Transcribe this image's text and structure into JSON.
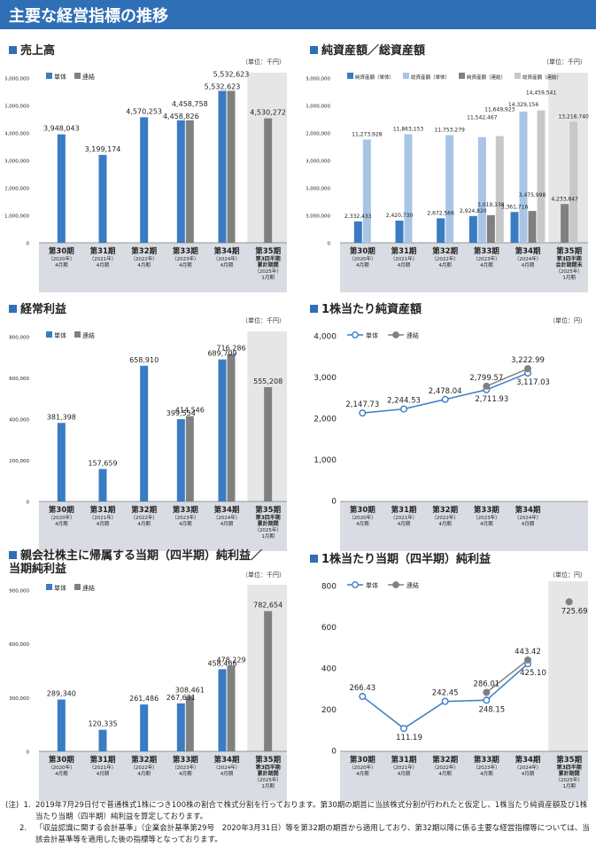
{
  "page_title": "主要な経営指標の推移",
  "notes": {
    "prefix": "(注)",
    "items": [
      {
        "num": "1.",
        "text": "2019年7月29日付で普通株式1株につき100株の割合で株式分割を行っております。第30期の期首に当該株式分割が行われたと仮定し、1株当たり純資産額及び1株当たり当期（四半期）純利益を算定しております。"
      },
      {
        "num": "2.",
        "text": "「収益認識に関する会計基準」（企業会計基準第29号　2020年3月31日）等を第32期の期首から適用しており、第32期以降に係る主要な経営指標等については、当該会計基準等を適用した後の指標等となっております。"
      }
    ]
  },
  "colors": {
    "single": "#3a7cc3",
    "consolidated": "#808080",
    "light_single": "#a8c5e6",
    "light_consolidated": "#c8c8c8",
    "shade": "#e6e6e6"
  },
  "chart_data": [
    {
      "id": "sales",
      "type": "bar",
      "title": "売上高",
      "unit": "（単位：千円）",
      "categories": [
        {
          "label": "第30期",
          "sub": [
            "（2020年）",
            "4月期"
          ]
        },
        {
          "label": "第31期",
          "sub": [
            "（2021年）",
            "4月期"
          ]
        },
        {
          "label": "第32期",
          "sub": [
            "（2022年）",
            "4月期"
          ]
        },
        {
          "label": "第33期",
          "sub": [
            "（2023年）",
            "4月期"
          ]
        },
        {
          "label": "第34期",
          "sub": [
            "（2024年）",
            "4月期"
          ]
        },
        {
          "label": "第35期",
          "sub": [
            "第3四半期",
            "累計期間",
            "（2025年）",
            "1月期"
          ]
        }
      ],
      "series": [
        {
          "name": "単体",
          "color": "#3a7cc3",
          "values": [
            3948043,
            3199174,
            4570253,
            4458826,
            5532623,
            null
          ]
        },
        {
          "name": "連結",
          "color": "#808080",
          "values": [
            null,
            null,
            null,
            4458758,
            5532623,
            4530272
          ]
        }
      ],
      "labels": [
        {
          "text": "3,948,043",
          "cat": 0,
          "s": 0
        },
        {
          "text": "3,199,174",
          "cat": 1,
          "s": 0
        },
        {
          "text": "4,570,253",
          "cat": 2,
          "s": 0
        },
        {
          "text": "4,458,826",
          "cat": 3,
          "s": 0,
          "dy": 2
        },
        {
          "text": "4,458,758",
          "cat": 3,
          "s": 1,
          "dy": -12
        },
        {
          "text": "5,532,623",
          "cat": 4,
          "s": 0,
          "dy": 2
        },
        {
          "text": "5,532,623",
          "cat": 4,
          "s": 1,
          "dy": -12
        },
        {
          "text": "4,530,272",
          "cat": 5,
          "s": 1
        }
      ],
      "ylim": [
        0,
        6000000
      ],
      "yticks": [
        "0",
        "1,000,000",
        "2,000,000",
        "3,000,000",
        "4,000,000",
        "5,000,000",
        "6,000,000"
      ],
      "ytick_values": [
        0,
        1000000,
        2000000,
        3000000,
        4000000,
        5000000,
        6000000
      ],
      "shaded_last": true
    },
    {
      "id": "net_assets",
      "type": "bar",
      "title": "純資産額／総資産額",
      "unit": "（単位：千円）",
      "categories": [
        {
          "label": "第30期",
          "sub": [
            "（2020年）",
            "4月期"
          ]
        },
        {
          "label": "第31期",
          "sub": [
            "（2021年）",
            "4月期"
          ]
        },
        {
          "label": "第32期",
          "sub": [
            "（2022年）",
            "4月期"
          ]
        },
        {
          "label": "第33期",
          "sub": [
            "（2023年）",
            "4月期"
          ]
        },
        {
          "label": "第34期",
          "sub": [
            "（2024年）",
            "4月期"
          ]
        },
        {
          "label": "第35期",
          "sub": [
            "第3四半期",
            "会計期間末",
            "（2025年）",
            "1月期"
          ]
        }
      ],
      "series": [
        {
          "name": "純資産額（単体）",
          "color": "#3a7cc3",
          "values": [
            2332433,
            2420730,
            2672566,
            2924820,
            3361716,
            null
          ]
        },
        {
          "name": "総資産額（単体）",
          "color": "#a8c5e6",
          "values": [
            11273928,
            11863153,
            11753279,
            11542467,
            14329156,
            null
          ]
        },
        {
          "name": "純資産額（連結）",
          "color": "#808080",
          "values": [
            null,
            null,
            null,
            3019338,
            3475998,
            4233847
          ]
        },
        {
          "name": "総資産額（連結）",
          "color": "#c8c8c8",
          "values": [
            null,
            null,
            null,
            11649923,
            14459541,
            13218740
          ]
        }
      ],
      "labels": [
        {
          "text": "2,332,433",
          "cat": 0,
          "s": 0
        },
        {
          "text": "11,273,928",
          "cat": 0,
          "s": 1
        },
        {
          "text": "2,420,730",
          "cat": 1,
          "s": 0
        },
        {
          "text": "11,863,153",
          "cat": 1,
          "s": 1
        },
        {
          "text": "2,672,566",
          "cat": 2,
          "s": 0
        },
        {
          "text": "11,753,279",
          "cat": 2,
          "s": 1
        },
        {
          "text": "2,924,820",
          "cat": 3,
          "s": 0
        },
        {
          "text": "3,019,338",
          "cat": 3,
          "s": 2,
          "dy": -6
        },
        {
          "text": "11,542,467",
          "cat": 3,
          "s": 1,
          "dy": -16
        },
        {
          "text": "11,649,923",
          "cat": 3,
          "s": 3,
          "dy": -24
        },
        {
          "text": "3,361,716",
          "cat": 4,
          "s": 0
        },
        {
          "text": "3,475,998",
          "cat": 4,
          "s": 2,
          "dy": -12
        },
        {
          "text": "14,329,156",
          "cat": 4,
          "s": 1,
          "dy": -2
        },
        {
          "text": "14,459,541",
          "cat": 4,
          "s": 3,
          "dy": -14
        },
        {
          "text": "4,233,847",
          "cat": 5,
          "s": 2
        },
        {
          "text": "13,218,740",
          "cat": 5,
          "s": 3
        }
      ],
      "legend_rows": 1,
      "ylim": [
        0,
        18000000
      ],
      "yticks": [
        "0",
        "3,000,000",
        "6,000,000",
        "9,000,000",
        "12,000,000",
        "15,000,000",
        "18,000,000"
      ],
      "ytick_values": [
        0,
        3000000,
        6000000,
        9000000,
        12000000,
        15000000,
        18000000
      ],
      "shaded_last": true
    },
    {
      "id": "ordinary_profit",
      "type": "bar",
      "title": "経常利益",
      "unit": "（単位：千円）",
      "categories": [
        {
          "label": "第30期",
          "sub": [
            "（2020年）",
            "4月期"
          ]
        },
        {
          "label": "第31期",
          "sub": [
            "（2021年）",
            "4月期"
          ]
        },
        {
          "label": "第32期",
          "sub": [
            "（2022年）",
            "4月期"
          ]
        },
        {
          "label": "第33期",
          "sub": [
            "（2023年）",
            "4月期"
          ]
        },
        {
          "label": "第34期",
          "sub": [
            "（2024年）",
            "4月期"
          ]
        },
        {
          "label": "第35期",
          "sub": [
            "第3四半期",
            "累計期間",
            "（2025年）",
            "1月期"
          ]
        }
      ],
      "series": [
        {
          "name": "単体",
          "color": "#3a7cc3",
          "values": [
            381398,
            157659,
            658910,
            399554,
            689709,
            null
          ]
        },
        {
          "name": "連結",
          "color": "#808080",
          "values": [
            null,
            null,
            null,
            414546,
            716286,
            555208
          ]
        }
      ],
      "labels": [
        {
          "text": "381,398",
          "cat": 0,
          "s": 0
        },
        {
          "text": "157,659",
          "cat": 1,
          "s": 0
        },
        {
          "text": "658,910",
          "cat": 2,
          "s": 0
        },
        {
          "text": "399,554",
          "cat": 3,
          "s": 0
        },
        {
          "text": "414,546",
          "cat": 3,
          "s": 1
        },
        {
          "text": "689,709",
          "cat": 4,
          "s": 0
        },
        {
          "text": "716,286",
          "cat": 4,
          "s": 1
        },
        {
          "text": "555,208",
          "cat": 5,
          "s": 1
        }
      ],
      "ylim": [
        0,
        800000
      ],
      "yticks": [
        "0",
        "200,000",
        "400,000",
        "600,000",
        "800,000"
      ],
      "ytick_values": [
        0,
        200000,
        400000,
        600000,
        800000
      ],
      "shaded_last": true
    },
    {
      "id": "bps",
      "type": "line",
      "title": "1株当たり純資産額",
      "unit": "（単位：円）",
      "categories": [
        {
          "label": "第30期",
          "sub": [
            "（2020年）",
            "4月期"
          ]
        },
        {
          "label": "第31期",
          "sub": [
            "（2021年）",
            "4月期"
          ]
        },
        {
          "label": "第32期",
          "sub": [
            "（2022年）",
            "4月期"
          ]
        },
        {
          "label": "第33期",
          "sub": [
            "（2023年）",
            "4月期"
          ]
        },
        {
          "label": "第34期",
          "sub": [
            "（2024年）",
            "4月期"
          ]
        }
      ],
      "series": [
        {
          "name": "単体",
          "color": "#3a7cc3",
          "values": [
            2147.73,
            2244.53,
            2478.04,
            2711.93,
            3117.03
          ]
        },
        {
          "name": "連結",
          "color": "#808080",
          "values": [
            null,
            null,
            null,
            2799.57,
            3222.99
          ]
        }
      ],
      "labels": [
        {
          "text": "2,147.73",
          "cat": 0,
          "s": 0,
          "pos": "above"
        },
        {
          "text": "2,244.53",
          "cat": 1,
          "s": 0,
          "pos": "above"
        },
        {
          "text": "2,478.04",
          "cat": 2,
          "s": 0,
          "pos": "above"
        },
        {
          "text": "2,711.93",
          "cat": 3,
          "s": 0,
          "pos": "below"
        },
        {
          "text": "2,799.57",
          "cat": 3,
          "s": 1,
          "pos": "above"
        },
        {
          "text": "3,117.03",
          "cat": 4,
          "s": 0,
          "pos": "below"
        },
        {
          "text": "3,222.99",
          "cat": 4,
          "s": 1,
          "pos": "above"
        }
      ],
      "ylim": [
        0,
        4000
      ],
      "yticks": [
        "0",
        "1,000",
        "2,000",
        "3,000",
        "4,000"
      ],
      "ytick_values": [
        0,
        1000,
        2000,
        3000,
        4000
      ],
      "shaded_last": false,
      "ncat_slots": 6
    },
    {
      "id": "net_income",
      "type": "bar",
      "title": "親会社株主に帰属する当期（四半期）純利益／当期純利益",
      "title_lines": [
        "親会社株主に帰属する当期（四半期）純利益／",
        "当期純利益"
      ],
      "unit": "（単位：千円）",
      "categories": [
        {
          "label": "第30期",
          "sub": [
            "（2020年）",
            "4月期"
          ]
        },
        {
          "label": "第31期",
          "sub": [
            "（2021年）",
            "4月期"
          ]
        },
        {
          "label": "第32期",
          "sub": [
            "（2022年）",
            "4月期"
          ]
        },
        {
          "label": "第33期",
          "sub": [
            "（2023年）",
            "4月期"
          ]
        },
        {
          "label": "第34期",
          "sub": [
            "（2024年）",
            "4月期"
          ]
        },
        {
          "label": "第35期",
          "sub": [
            "第3四半期",
            "累計期間",
            "（2025年）",
            "1月期"
          ]
        }
      ],
      "series": [
        {
          "name": "単体",
          "color": "#3a7cc3",
          "values": [
            289340,
            120335,
            261486,
            267631,
            458466,
            null
          ]
        },
        {
          "name": "連結",
          "color": "#808080",
          "values": [
            null,
            null,
            null,
            308461,
            478229,
            782654
          ]
        }
      ],
      "labels": [
        {
          "text": "289,340",
          "cat": 0,
          "s": 0
        },
        {
          "text": "120,335",
          "cat": 1,
          "s": 0
        },
        {
          "text": "261,486",
          "cat": 2,
          "s": 0
        },
        {
          "text": "267,631",
          "cat": 3,
          "s": 0
        },
        {
          "text": "308,461",
          "cat": 3,
          "s": 1
        },
        {
          "text": "458,466",
          "cat": 4,
          "s": 0
        },
        {
          "text": "478,229",
          "cat": 4,
          "s": 1
        },
        {
          "text": "782,654",
          "cat": 5,
          "s": 1
        }
      ],
      "ylim": [
        0,
        900000
      ],
      "yticks": [
        "0",
        "300,000",
        "600,000",
        "900,000"
      ],
      "ytick_values": [
        0,
        300000,
        600000,
        900000
      ],
      "shaded_last": true
    },
    {
      "id": "eps",
      "type": "line",
      "title": "1株当たり当期（四半期）純利益",
      "unit": "（単位：円）",
      "categories": [
        {
          "label": "第30期",
          "sub": [
            "（2020年）",
            "4月期"
          ]
        },
        {
          "label": "第31期",
          "sub": [
            "（2021年）",
            "4月期"
          ]
        },
        {
          "label": "第32期",
          "sub": [
            "（2022年）",
            "4月期"
          ]
        },
        {
          "label": "第33期",
          "sub": [
            "（2023年）",
            "4月期"
          ]
        },
        {
          "label": "第34期",
          "sub": [
            "（2024年）",
            "4月期"
          ]
        },
        {
          "label": "第35期",
          "sub": [
            "第3四半期",
            "累計期間",
            "（2025年）",
            "1月期"
          ]
        }
      ],
      "series": [
        {
          "name": "単体",
          "color": "#3a7cc3",
          "values": [
            266.43,
            111.19,
            242.45,
            248.15,
            425.1,
            null
          ]
        },
        {
          "name": "連結",
          "color": "#808080",
          "values": [
            null,
            null,
            null,
            286.01,
            443.42,
            725.69
          ]
        }
      ],
      "labels": [
        {
          "text": "266.43",
          "cat": 0,
          "s": 0,
          "pos": "above"
        },
        {
          "text": "111.19",
          "cat": 1,
          "s": 0,
          "pos": "below"
        },
        {
          "text": "242.45",
          "cat": 2,
          "s": 0,
          "pos": "above"
        },
        {
          "text": "248.15",
          "cat": 3,
          "s": 0,
          "pos": "below"
        },
        {
          "text": "286.01",
          "cat": 3,
          "s": 1,
          "pos": "above"
        },
        {
          "text": "425.10",
          "cat": 4,
          "s": 0,
          "pos": "below"
        },
        {
          "text": "443.42",
          "cat": 4,
          "s": 1,
          "pos": "above"
        },
        {
          "text": "725.69",
          "cat": 5,
          "s": 1,
          "pos": "below"
        }
      ],
      "ylim": [
        0,
        800
      ],
      "yticks": [
        "0",
        "200",
        "400",
        "600",
        "800"
      ],
      "ytick_values": [
        0,
        200,
        400,
        600,
        800
      ],
      "shaded_last": true
    }
  ]
}
